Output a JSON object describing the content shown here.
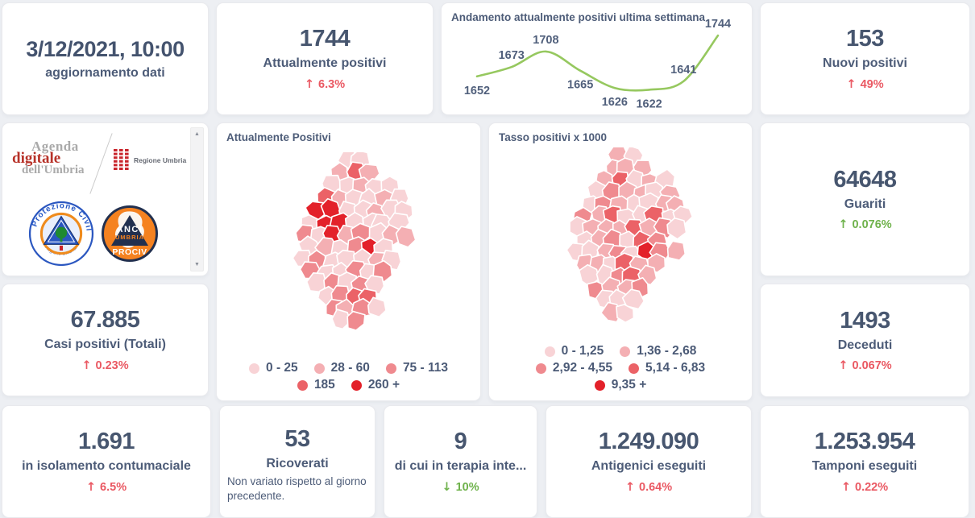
{
  "meta": {
    "background_color": "#edeff3",
    "card_color": "#ffffff",
    "text_color": "#47566f",
    "red_accent": "#ea5963",
    "green_accent": "#6fb24c",
    "line_color": "#96c85f"
  },
  "stats": {
    "update": {
      "value": "3/12/2021, 10:00",
      "label": "aggiornamento dati"
    },
    "attualmente_positivi": {
      "value": "1744",
      "label": "Attualmente positivi",
      "arrow": "↑",
      "delta": "6.3%"
    },
    "nuovi_positivi": {
      "value": "153",
      "label": "Nuovi positivi",
      "arrow": "↑",
      "delta": "49%"
    },
    "guariti": {
      "value": "64648",
      "label": "Guariti",
      "arrow": "↑",
      "delta": "0.076%"
    },
    "casi_totali": {
      "value": "67.885",
      "label": "Casi positivi (Totali)",
      "arrow": "↑",
      "delta": "0.23%"
    },
    "deceduti": {
      "value": "1493",
      "label": "Deceduti",
      "arrow": "↑",
      "delta": "0.067%"
    },
    "isolamento": {
      "value": "1.691",
      "label": "in isolamento contumaciale",
      "arrow": "↑",
      "delta": "6.5%"
    },
    "ricoverati": {
      "value": "53",
      "label": "Ricoverati",
      "note": "Non variato rispetto al giorno precedente."
    },
    "terapia_intensiva": {
      "value": "9",
      "label": "di cui in terapia inte...",
      "arrow": "↓",
      "delta": "10%"
    },
    "antigenici": {
      "value": "1.249.090",
      "label": "Antigenici eseguiti",
      "arrow": "↑",
      "delta": "0.64%"
    },
    "tamponi": {
      "value": "1.253.954",
      "label": "Tamponi eseguiti",
      "arrow": "↑",
      "delta": "0.22%"
    }
  },
  "chart_data": {
    "type": "line",
    "title": "Andamento attualmente positivi ultima settimana",
    "values": [
      1652,
      1673,
      1708,
      1665,
      1626,
      1622,
      1641,
      1744
    ],
    "label_positions": [
      "below",
      "above",
      "above",
      "below",
      "below",
      "below",
      "above",
      "above"
    ],
    "line_color": "#96c85f",
    "ylim": [
      1610,
      1755
    ],
    "grid": false,
    "legend_position": "none"
  },
  "maps": [
    {
      "title": "Attualmente Positivi",
      "legend_rows": [
        [
          {
            "label": "0 - 25",
            "color": "#f8d3d6"
          },
          {
            "label": "28 - 60",
            "color": "#f4afb3"
          },
          {
            "label": "75 - 113",
            "color": "#ef8a8f"
          }
        ],
        [
          {
            "label": "185",
            "color": "#eb6267"
          },
          {
            "label": "260 +",
            "color": "#e3212a"
          }
        ]
      ]
    },
    {
      "title": "Tasso positivi x 1000",
      "legend_rows": [
        [
          {
            "label": "0 - 1,25",
            "color": "#f8d3d6"
          },
          {
            "label": "1,36 - 2,68",
            "color": "#f4afb3"
          }
        ],
        [
          {
            "label": "2,92 - 4,55",
            "color": "#ef8a8f"
          },
          {
            "label": "5,14 - 6,83",
            "color": "#eb6267"
          }
        ],
        [
          {
            "label": "9,35 +",
            "color": "#e3212a"
          }
        ]
      ]
    }
  ],
  "logos": {
    "agenda": {
      "line1": "Agenda",
      "line2": "digitale",
      "line3": "dell'Umbria"
    },
    "regione": {
      "label": "Regione Umbria"
    },
    "protezione_civile": {
      "arc_top": "Protezione Civile",
      "arc_bottom": "Regione Umbria"
    },
    "anci": {
      "line1": "ANCI",
      "line2": "UMBRIA",
      "line3": "PROCIV"
    }
  }
}
